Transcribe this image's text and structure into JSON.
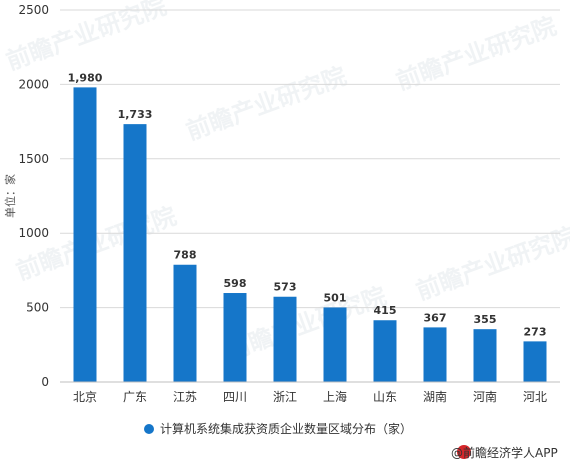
{
  "chart_data": {
    "type": "bar",
    "categories": [
      "北京",
      "广东",
      "江苏",
      "四川",
      "浙江",
      "上海",
      "山东",
      "湖南",
      "河南",
      "河北"
    ],
    "series": [
      {
        "name": "计算机系统集成获资质企业数量区域分布（家）",
        "values": [
          1980,
          1733,
          788,
          598,
          573,
          501,
          415,
          367,
          355,
          273
        ],
        "color": "#1576c9"
      }
    ],
    "data_labels": [
      "1,980",
      "1,733",
      "788",
      "598",
      "573",
      "501",
      "415",
      "367",
      "355",
      "273"
    ],
    "ylabel": "单位：家",
    "ylim": [
      0,
      2500
    ],
    "yticks": [
      0,
      500,
      1000,
      1500,
      2000,
      2500
    ],
    "grid": true,
    "legend_position": "bottom"
  },
  "source": {
    "text": "@前瞻经济学人APP",
    "icon": "qianzhan-logo-icon"
  },
  "watermark": {
    "text": "前瞻产业研究院"
  },
  "colors": {
    "bar": "#1576c9",
    "grid": "#d9d9d9",
    "axis": "#bfbfbf",
    "logo": "#d6262a"
  }
}
